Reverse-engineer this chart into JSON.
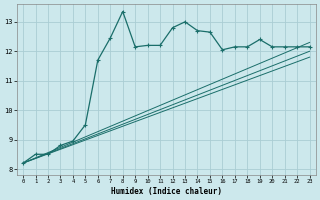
{
  "xlabel": "Humidex (Indice chaleur)",
  "bg_color": "#cce8ec",
  "grid_color": "#aacdd4",
  "line_color": "#1a6e6a",
  "xlim": [
    -0.5,
    23.5
  ],
  "ylim": [
    7.8,
    13.6
  ],
  "yticks": [
    8,
    9,
    10,
    11,
    12,
    13
  ],
  "xticks": [
    0,
    1,
    2,
    3,
    4,
    5,
    6,
    7,
    8,
    9,
    10,
    11,
    12,
    13,
    14,
    15,
    16,
    17,
    18,
    19,
    20,
    21,
    22,
    23
  ],
  "main_x": [
    0,
    1,
    2,
    3,
    4,
    5,
    6,
    7,
    8,
    9,
    10,
    11,
    12,
    13,
    14,
    15,
    16,
    17,
    18,
    19,
    20,
    21,
    22,
    23
  ],
  "main_y": [
    8.2,
    8.5,
    8.5,
    8.8,
    8.95,
    9.5,
    11.7,
    12.45,
    13.35,
    12.15,
    12.2,
    12.2,
    12.8,
    13.0,
    12.7,
    12.65,
    12.05,
    12.15,
    12.15,
    12.4,
    12.15,
    12.15,
    12.15,
    12.15
  ],
  "line2_x": [
    0,
    23
  ],
  "line2_y": [
    8.2,
    12.3
  ],
  "line3_x": [
    0,
    23
  ],
  "line3_y": [
    8.2,
    12.0
  ],
  "line4_x": [
    0,
    23
  ],
  "line4_y": [
    8.2,
    11.8
  ]
}
